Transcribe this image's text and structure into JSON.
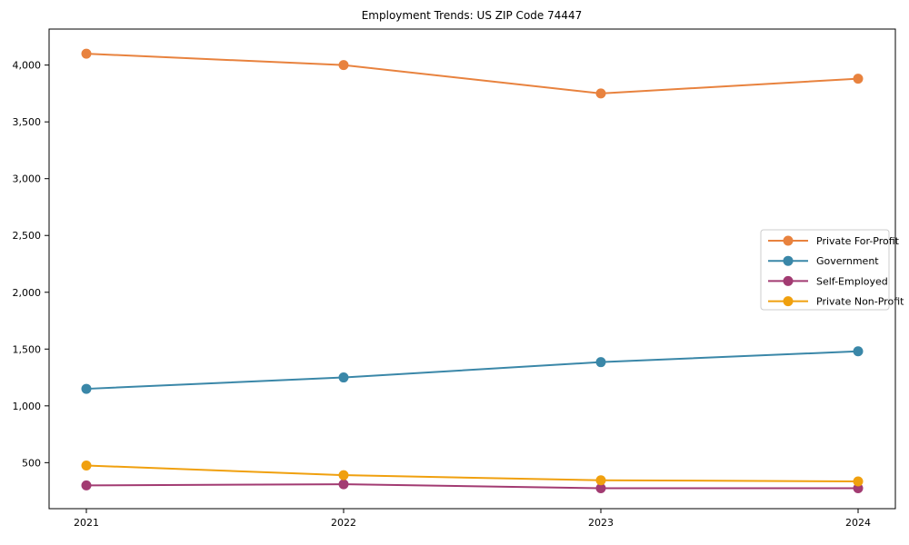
{
  "chart_data": {
    "type": "line",
    "title": "Employment Trends: US ZIP Code 74447",
    "xlabel": "",
    "ylabel": "",
    "categories": [
      "2021",
      "2022",
      "2023",
      "2024"
    ],
    "series": [
      {
        "name": "Private For-Profit",
        "color": "#E8823E",
        "values": [
          4100,
          4000,
          3750,
          3880
        ]
      },
      {
        "name": "Government",
        "color": "#3A87A8",
        "values": [
          1150,
          1250,
          1385,
          1480
        ]
      },
      {
        "name": "Self-Employed",
        "color": "#A23B72",
        "values": [
          300,
          310,
          275,
          275
        ]
      },
      {
        "name": "Private Non-Profit",
        "color": "#F0A00E",
        "values": [
          475,
          390,
          345,
          335
        ]
      }
    ],
    "ylim": [
      95,
      4317
    ],
    "yticks": [
      500,
      1000,
      1500,
      2000,
      2500,
      3000,
      3500,
      4000
    ],
    "ytick_labels": [
      "500",
      "1,000",
      "1,500",
      "2,000",
      "2,500",
      "3,000",
      "3,500",
      "4,000"
    ],
    "grid": false,
    "legend_position": "center right",
    "colors": {
      "background": "#ffffff",
      "spine": "#000000",
      "text": "#000000",
      "legend_border": "#cccccc",
      "legend_background": "#ffffff"
    }
  }
}
